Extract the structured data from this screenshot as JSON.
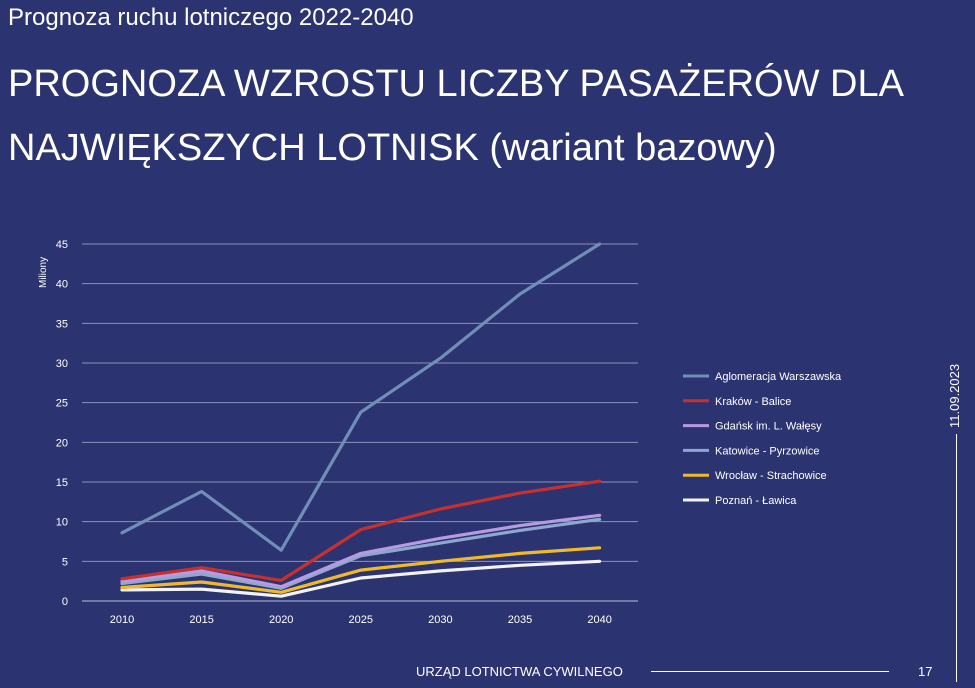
{
  "slide": {
    "subtitle": "Prognoza ruchu lotniczego 2022-2040",
    "title": "PROGNOZA WZROSTU LICZBY PASAŻERÓW DLA NAJWIĘKSZYCH LOTNISK (wariant bazowy)",
    "date": "11.09.2023",
    "footer": "URZĄD LOTNICTWA CYWILNEGO",
    "page_number": "17"
  },
  "chart_data": {
    "type": "line",
    "title": "",
    "xlabel": "",
    "ylabel": "Miliony",
    "categories": [
      "2010",
      "2015",
      "2020",
      "2025",
      "2030",
      "2035",
      "2040"
    ],
    "ylim": [
      0,
      45
    ],
    "yticks": [
      0,
      5,
      10,
      15,
      20,
      25,
      30,
      35,
      40,
      45
    ],
    "grid": true,
    "legend": "right",
    "series": [
      {
        "name": "Aglomeracja Warszawska",
        "color": "#6f8fb8",
        "values": [
          8.6,
          13.8,
          6.4,
          23.8,
          30.6,
          38.7,
          45.0
        ]
      },
      {
        "name": "Kraków - Balice",
        "color": "#c8302d",
        "values": [
          2.8,
          4.2,
          2.6,
          9.0,
          11.6,
          13.6,
          15.1
        ]
      },
      {
        "name": "Gdańsk im. L. Wałęsy",
        "color": "#b89ae0",
        "values": [
          2.5,
          3.8,
          1.8,
          6.0,
          7.9,
          9.5,
          10.8
        ]
      },
      {
        "name": "Katowice - Pyrzowice",
        "color": "#8ca8cf",
        "values": [
          2.2,
          3.4,
          1.6,
          5.7,
          7.3,
          8.9,
          10.3
        ]
      },
      {
        "name": "Wrocław - Strachowice",
        "color": "#f0b92a",
        "values": [
          1.7,
          2.4,
          1.1,
          3.9,
          5.0,
          6.0,
          6.7
        ]
      },
      {
        "name": "Poznań - Ławica",
        "color": "#f2f2f2",
        "values": [
          1.4,
          1.5,
          0.6,
          2.9,
          3.8,
          4.5,
          5.0
        ]
      }
    ]
  }
}
